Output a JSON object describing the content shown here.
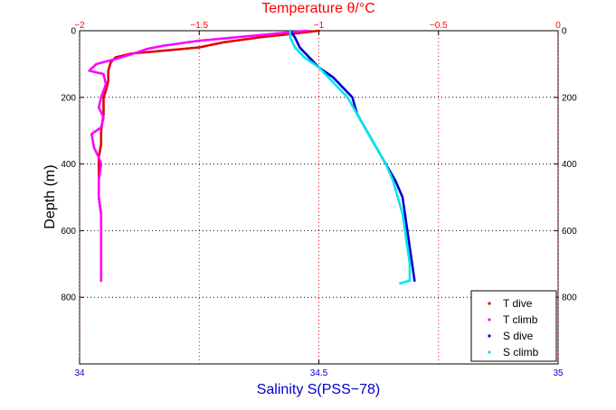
{
  "chart_data": {
    "type": "scatter",
    "top_axis": {
      "label": "Temperature θ/°C",
      "ticks": [
        "−2",
        "−1.5",
        "−1",
        "−0.5",
        "0"
      ],
      "range": [
        -2,
        0
      ],
      "color": "#ff0000"
    },
    "bottom_axis": {
      "label": "Salinity S(PSS−78)",
      "ticks": [
        "34",
        "34.5",
        "35"
      ],
      "range": [
        34,
        35
      ],
      "color": "#0000cc"
    },
    "left_axis": {
      "label": "Depth (m)",
      "ticks": [
        "0",
        "200",
        "400",
        "600",
        "800"
      ],
      "range": [
        0,
        1000
      ],
      "reversed": true
    },
    "right_axis": {
      "ticks": [
        "0",
        "200",
        "400",
        "600",
        "800"
      ]
    },
    "grid": true,
    "legend_position": "bottom-right",
    "series": [
      {
        "name": "T dive",
        "axis": "top",
        "color": "#e00000",
        "points": [
          [
            -1.0,
            0
          ],
          [
            -1.12,
            10
          ],
          [
            -1.25,
            20
          ],
          [
            -1.4,
            35
          ],
          [
            -1.5,
            50
          ],
          [
            -1.65,
            60
          ],
          [
            -1.78,
            68
          ],
          [
            -1.85,
            80
          ],
          [
            -1.87,
            95
          ],
          [
            -1.88,
            120
          ],
          [
            -1.88,
            150
          ],
          [
            -1.89,
            180
          ],
          [
            -1.9,
            200
          ],
          [
            -1.9,
            250
          ],
          [
            -1.91,
            300
          ],
          [
            -1.91,
            340
          ],
          [
            -1.92,
            380
          ],
          [
            -1.92,
            450
          ],
          [
            -1.92,
            500
          ],
          [
            -1.91,
            550
          ],
          [
            -1.91,
            600
          ],
          [
            -1.91,
            650
          ],
          [
            -1.91,
            700
          ],
          [
            -1.91,
            750
          ]
        ]
      },
      {
        "name": "T climb",
        "axis": "top",
        "color": "#ff00ff",
        "points": [
          [
            -1.05,
            0
          ],
          [
            -1.2,
            10
          ],
          [
            -1.35,
            20
          ],
          [
            -1.5,
            30
          ],
          [
            -1.65,
            45
          ],
          [
            -1.72,
            55
          ],
          [
            -1.78,
            70
          ],
          [
            -1.85,
            85
          ],
          [
            -1.93,
            100
          ],
          [
            -1.96,
            120
          ],
          [
            -1.9,
            130
          ],
          [
            -1.89,
            160
          ],
          [
            -1.91,
            200
          ],
          [
            -1.92,
            230
          ],
          [
            -1.9,
            260
          ],
          [
            -1.91,
            290
          ],
          [
            -1.95,
            310
          ],
          [
            -1.94,
            350
          ],
          [
            -1.92,
            380
          ],
          [
            -1.91,
            400
          ],
          [
            -1.92,
            450
          ],
          [
            -1.92,
            500
          ],
          [
            -1.91,
            550
          ],
          [
            -1.91,
            600
          ],
          [
            -1.91,
            650
          ],
          [
            -1.91,
            700
          ],
          [
            -1.91,
            750
          ]
        ]
      },
      {
        "name": "S dive",
        "axis": "bottom",
        "color": "#0000cc",
        "points": [
          [
            34.44,
            0
          ],
          [
            34.45,
            20
          ],
          [
            34.46,
            50
          ],
          [
            34.48,
            80
          ],
          [
            34.5,
            110
          ],
          [
            34.53,
            140
          ],
          [
            34.55,
            170
          ],
          [
            34.57,
            200
          ],
          [
            34.58,
            250
          ],
          [
            34.6,
            300
          ],
          [
            34.62,
            350
          ],
          [
            34.64,
            400
          ],
          [
            34.66,
            450
          ],
          [
            34.675,
            500
          ],
          [
            34.68,
            550
          ],
          [
            34.685,
            600
          ],
          [
            34.69,
            650
          ],
          [
            34.695,
            700
          ],
          [
            34.7,
            750
          ]
        ]
      },
      {
        "name": "S climb",
        "axis": "bottom",
        "color": "#00e5ee",
        "points": [
          [
            34.44,
            0
          ],
          [
            34.44,
            20
          ],
          [
            34.45,
            50
          ],
          [
            34.47,
            80
          ],
          [
            34.5,
            110
          ],
          [
            34.52,
            140
          ],
          [
            34.54,
            170
          ],
          [
            34.56,
            200
          ],
          [
            34.58,
            250
          ],
          [
            34.6,
            300
          ],
          [
            34.62,
            350
          ],
          [
            34.64,
            400
          ],
          [
            34.655,
            450
          ],
          [
            34.665,
            500
          ],
          [
            34.675,
            550
          ],
          [
            34.68,
            600
          ],
          [
            34.685,
            650
          ],
          [
            34.69,
            700
          ],
          [
            34.69,
            750
          ],
          [
            34.67,
            758
          ]
        ]
      }
    ]
  }
}
